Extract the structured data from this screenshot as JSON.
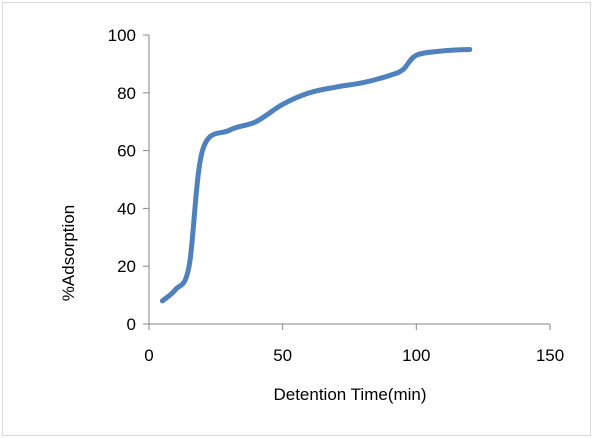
{
  "chart_data": {
    "type": "line",
    "title": "",
    "xlabel": "Detention Time(min)",
    "ylabel": "%Adsorption",
    "xlim": [
      0,
      150
    ],
    "ylim": [
      0,
      100
    ],
    "x_ticks": [
      0,
      50,
      100,
      150
    ],
    "y_ticks": [
      0,
      20,
      40,
      60,
      80,
      100
    ],
    "grid": false,
    "legend": "none",
    "series": [
      {
        "color": "#4f81bd",
        "smooth": true,
        "x": [
          5,
          10,
          15,
          20,
          30,
          40,
          50,
          60,
          70,
          80,
          90,
          95,
          100,
          110,
          120
        ],
        "y": [
          8,
          12,
          20,
          60,
          67,
          70,
          76,
          80,
          82,
          83.5,
          86,
          88,
          93,
          94.5,
          95
        ]
      }
    ]
  }
}
